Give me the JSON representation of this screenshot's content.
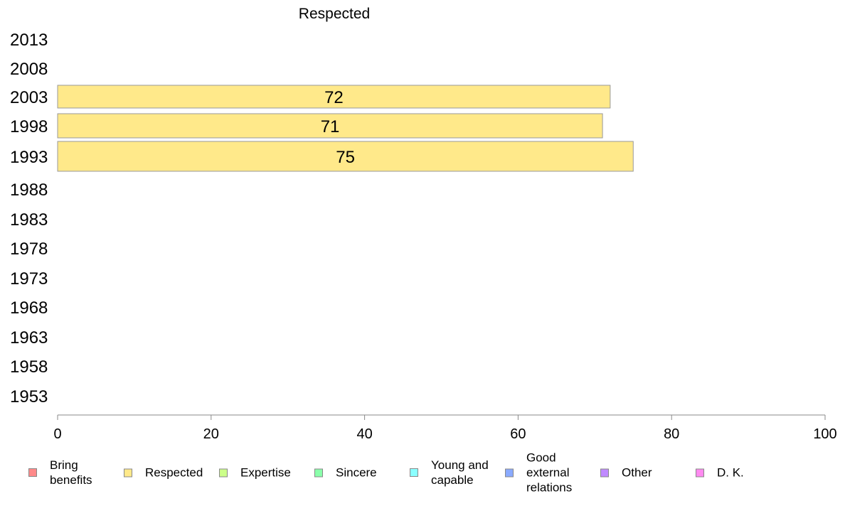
{
  "chart_data": {
    "type": "bar",
    "orientation": "horizontal",
    "title": "Respected",
    "categories": [
      "2013",
      "2008",
      "2003",
      "1998",
      "1993",
      "1988",
      "1983",
      "1978",
      "1973",
      "1968",
      "1963",
      "1958",
      "1953"
    ],
    "series": [
      {
        "name": "Respected",
        "color": "#FFE98A",
        "values": [
          null,
          null,
          72,
          71,
          75,
          null,
          null,
          null,
          null,
          null,
          null,
          null,
          null
        ]
      }
    ],
    "xlim": [
      0,
      100
    ],
    "xticks": [
      "0",
      "20",
      "40",
      "60",
      "80",
      "100"
    ],
    "grid": false,
    "legend_position": "bottom"
  },
  "legend": [
    {
      "label": "Bring\nbenefits",
      "color": "#FF8A8A"
    },
    {
      "label": "Respected",
      "color": "#FFE98A"
    },
    {
      "label": "Expertise",
      "color": "#CCFF8A"
    },
    {
      "label": "Sincere",
      "color": "#8AFFAA"
    },
    {
      "label": "Young and\ncapable",
      "color": "#8AFFFF"
    },
    {
      "label": "Good\nexternal\nrelations",
      "color": "#8AAAFF"
    },
    {
      "label": "Other",
      "color": "#C08AFF"
    },
    {
      "label": "D. K.",
      "color": "#FF8AF0"
    }
  ]
}
